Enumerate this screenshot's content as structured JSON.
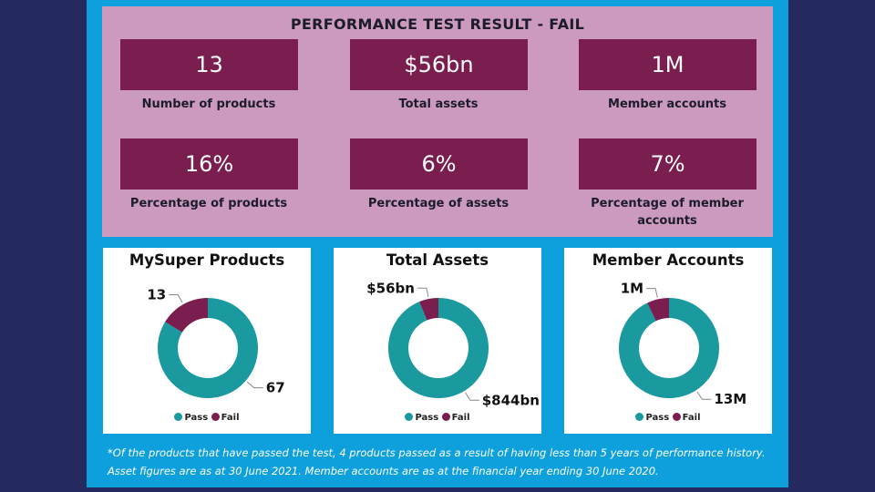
{
  "title": "PERFORMANCE TEST RESULT - FAIL",
  "kpis": [
    {
      "value": "13",
      "label": "Number of products"
    },
    {
      "value": "$56bn",
      "label": "Total assets"
    },
    {
      "value": "1M",
      "label": "Member accounts"
    },
    {
      "value": "16%",
      "label": "Percentage of products"
    },
    {
      "value": "6%",
      "label": "Percentage of assets"
    },
    {
      "value": "7%",
      "label": "Percentage of member accounts"
    }
  ],
  "colors": {
    "pass": "#1a9a9e",
    "fail": "#7a1d4f",
    "panel": "#cc9abf",
    "frame": "#0ea0dc",
    "background": "#252a5e"
  },
  "legend": {
    "pass": "Pass",
    "fail": "Fail"
  },
  "chart_data": [
    {
      "type": "pie",
      "title": "MySuper Products",
      "categories": [
        "Pass",
        "Fail"
      ],
      "values": [
        67,
        13
      ],
      "labels": [
        "67",
        "13"
      ]
    },
    {
      "type": "pie",
      "title": "Total Assets",
      "categories": [
        "Pass",
        "Fail"
      ],
      "values": [
        844,
        56
      ],
      "labels": [
        "$844bn",
        "$56bn"
      ]
    },
    {
      "type": "pie",
      "title": "Member Accounts",
      "categories": [
        "Pass",
        "Fail"
      ],
      "values": [
        13,
        1
      ],
      "labels": [
        "13M",
        "1M"
      ]
    }
  ],
  "footnote": [
    "*Of the products that have passed the test, 4 products passed as a result of having less than 5 years of performance history.",
    "Asset figures are as at 30 June 2021. Member accounts are as at the financial year ending 30 June 2020."
  ]
}
